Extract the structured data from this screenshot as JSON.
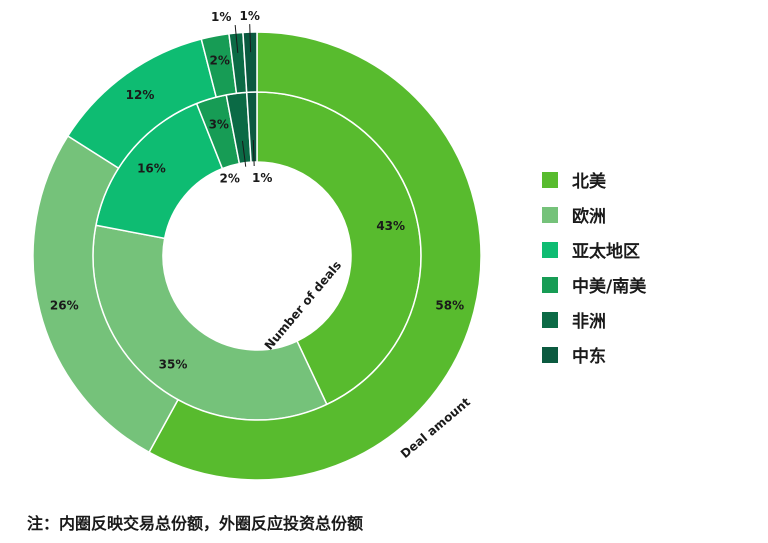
{
  "chart_data": {
    "type": "pie",
    "title": "",
    "categories": [
      "北美",
      "欧洲",
      "亚太地区",
      "中美/南美",
      "非洲",
      "中东"
    ],
    "colors": [
      "#58bb2e",
      "#75c27a",
      "#0ebc72",
      "#179c55",
      "#0b6a45",
      "#0b5a40"
    ],
    "series": [
      {
        "name": "Number of deals",
        "ring": "inner",
        "values": [
          43,
          35,
          16,
          3,
          2,
          1
        ],
        "labels": [
          "43%",
          "35%",
          "16%",
          "3%",
          "2%",
          "1%"
        ]
      },
      {
        "name": "Deal amount",
        "ring": "outer",
        "values": [
          58,
          26,
          12,
          2,
          1,
          1
        ],
        "labels": [
          "58%",
          "26%",
          "12%",
          "2%",
          "1%",
          "1%"
        ]
      }
    ],
    "legend_position": "right"
  },
  "footnote": "注：内圈反映交易总份额，外圈反应投资总份额"
}
